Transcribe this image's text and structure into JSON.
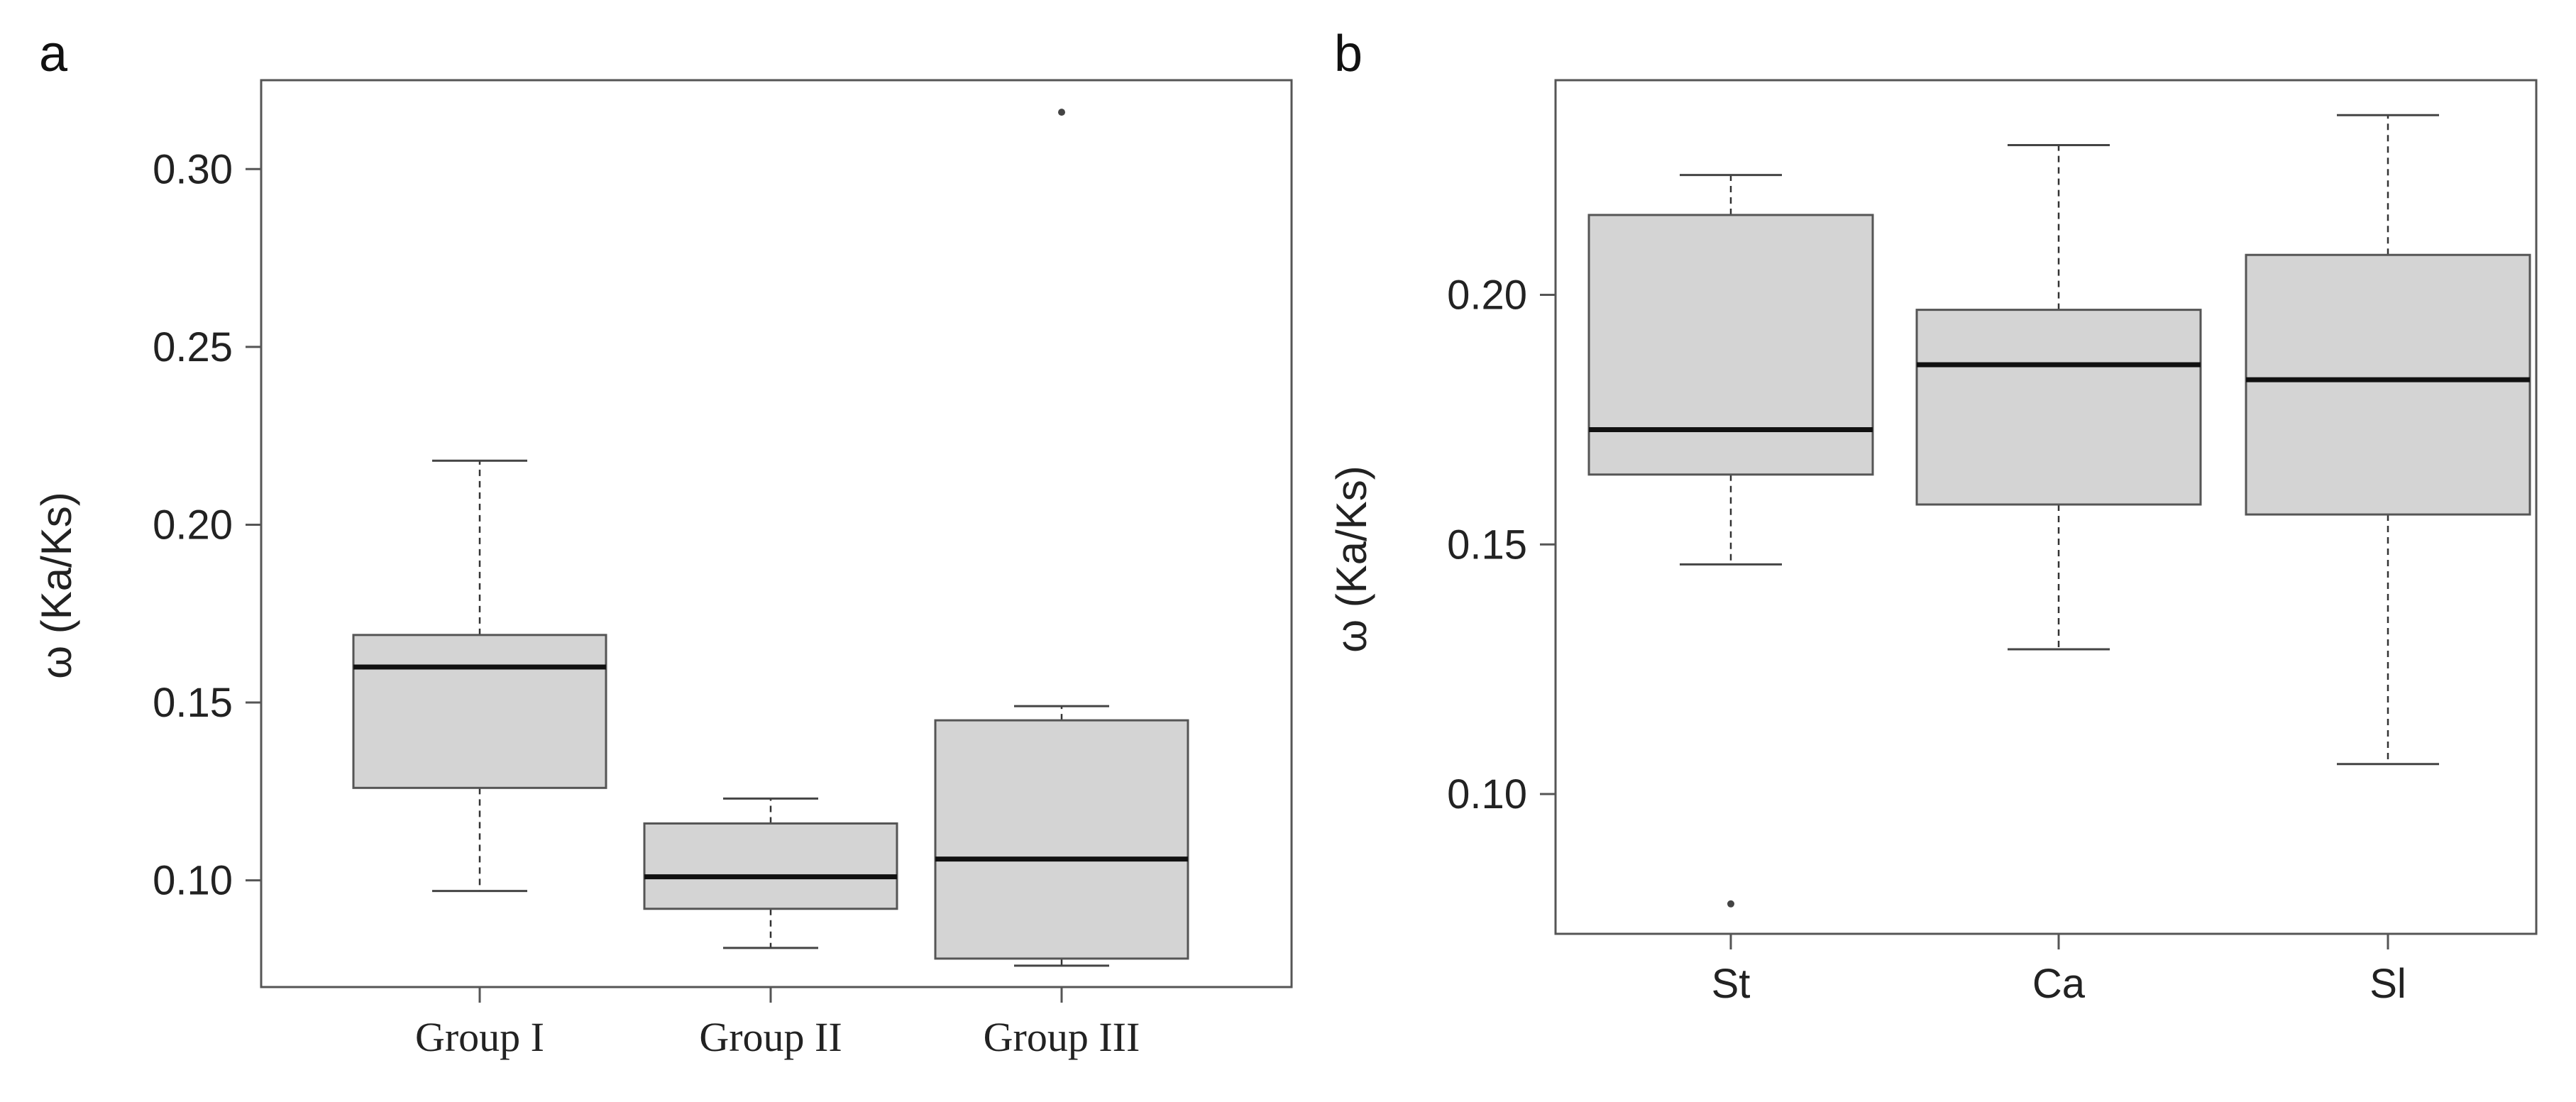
{
  "chart_data": [
    {
      "panel": "a",
      "type": "box",
      "title": "",
      "xlabel": "",
      "ylabel": "ω (Ka/Ks)",
      "ylim": [
        0.07,
        0.325
      ],
      "yticks": [
        0.1,
        0.15,
        0.2,
        0.25,
        0.3
      ],
      "ytick_labels": [
        "0.10",
        "0.15",
        "0.20",
        "0.25",
        "0.30"
      ],
      "categories": [
        "Group I",
        "Group II",
        "Group III"
      ],
      "boxes": [
        {
          "label": "Group I",
          "whisker_low": 0.097,
          "q1": 0.126,
          "median": 0.16,
          "q3": 0.169,
          "whisker_high": 0.218,
          "outliers": []
        },
        {
          "label": "Group II",
          "whisker_low": 0.081,
          "q1": 0.092,
          "median": 0.101,
          "q3": 0.116,
          "whisker_high": 0.123,
          "outliers": []
        },
        {
          "label": "Group III",
          "whisker_low": 0.076,
          "q1": 0.078,
          "median": 0.106,
          "q3": 0.145,
          "whisker_high": 0.149,
          "outliers": [
            0.316
          ]
        }
      ]
    },
    {
      "panel": "b",
      "type": "box",
      "title": "",
      "xlabel": "",
      "ylabel": "ω (Ka/Ks)",
      "ylim": [
        0.072,
        0.243
      ],
      "yticks": [
        0.1,
        0.15,
        0.2
      ],
      "ytick_labels": [
        "0.10",
        "0.15",
        "0.20"
      ],
      "categories": [
        "St",
        "Ca",
        "Sl"
      ],
      "boxes": [
        {
          "label": "St",
          "whisker_low": 0.146,
          "q1": 0.164,
          "median": 0.173,
          "q3": 0.216,
          "whisker_high": 0.224,
          "outliers": [
            0.078
          ]
        },
        {
          "label": "Ca",
          "whisker_low": 0.129,
          "q1": 0.158,
          "median": 0.186,
          "q3": 0.197,
          "whisker_high": 0.23,
          "outliers": []
        },
        {
          "label": "Sl",
          "whisker_low": 0.106,
          "q1": 0.156,
          "median": 0.183,
          "q3": 0.208,
          "whisker_high": 0.236,
          "outliers": []
        }
      ]
    }
  ]
}
